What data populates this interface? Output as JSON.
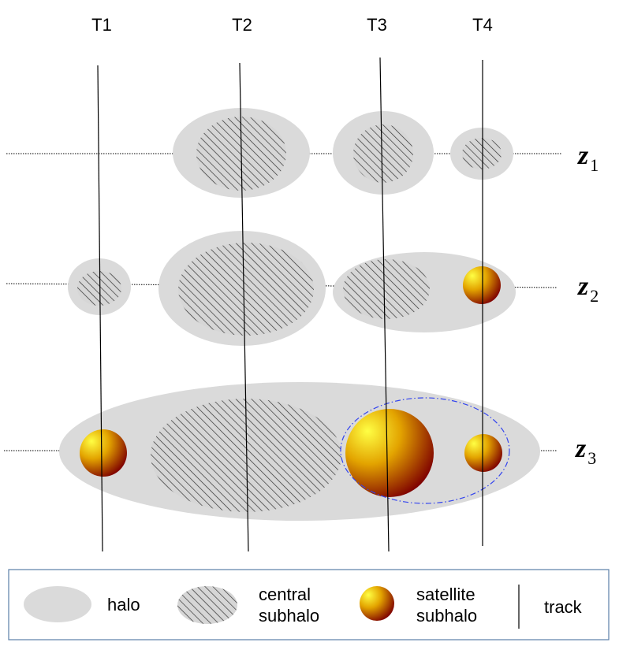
{
  "tracks": [
    {
      "label": "T1"
    },
    {
      "label": "T2"
    },
    {
      "label": "T3"
    },
    {
      "label": "T4"
    }
  ],
  "redshifts": [
    {
      "symbol": "z",
      "subscript": "1"
    },
    {
      "symbol": "z",
      "subscript": "2"
    },
    {
      "symbol": "z",
      "subscript": "3"
    }
  ],
  "legend": {
    "halo": "halo",
    "central_line1": "central",
    "central_line2": "subhalo",
    "satellite_line1": "satellite",
    "satellite_line2": "subhalo",
    "track": "track"
  },
  "colors": {
    "halo": "#dadada",
    "hatch": "#333333",
    "satellite_light": "#ffff33",
    "satellite_mid": "#e8a800",
    "satellite_dark": "#8a0000",
    "highlight_ring": "#3344ee",
    "legend_border": "#5a7fa8"
  }
}
